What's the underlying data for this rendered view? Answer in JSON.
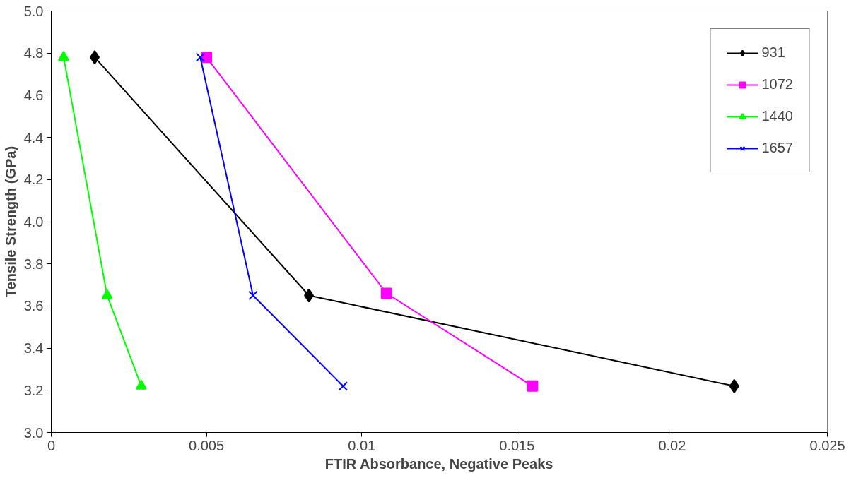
{
  "chart_data": {
    "type": "line",
    "xlabel": "FTIR Absorbance, Negative Peaks",
    "ylabel": "Tensile Strength (GPa)",
    "xlim": [
      0,
      0.025
    ],
    "xticks": [
      0,
      0.005,
      0.01,
      0.015,
      0.02,
      0.025
    ],
    "ylim": [
      3.0,
      5.0
    ],
    "yticks": [
      {
        "value": 3.0,
        "label": "3.0"
      },
      {
        "value": 3.2,
        "label": "3.2"
      },
      {
        "value": 3.4,
        "label": "3.4"
      },
      {
        "value": 3.6,
        "label": "3.6"
      },
      {
        "value": 3.8,
        "label": "3.8"
      },
      {
        "value": 4.0,
        "label": "4.0"
      },
      {
        "value": 4.2,
        "label": "4.2"
      },
      {
        "value": 4.4,
        "label": "4.4"
      },
      {
        "value": 4.6,
        "label": "4.6"
      },
      {
        "value": 4.8,
        "label": "4.8"
      },
      {
        "value": 5.0,
        "label": "5.0"
      }
    ],
    "grid": false,
    "legend": "top right",
    "line_style": "solid",
    "series": [
      {
        "name": "931",
        "color": "#000000",
        "marker": "diamond",
        "x": [
          0.0014,
          0.0083,
          0.022
        ],
        "values": [
          4.78,
          3.65,
          3.22
        ]
      },
      {
        "name": "1072",
        "color": "#ff00ff",
        "marker": "square",
        "x": [
          0.005,
          0.0108,
          0.0155
        ],
        "values": [
          4.78,
          3.66,
          3.22
        ]
      },
      {
        "name": "1440",
        "color": "#00ff00",
        "marker": "triangle",
        "x": [
          0.0004,
          0.0018,
          0.0029
        ],
        "values": [
          4.78,
          3.65,
          3.22
        ]
      },
      {
        "name": "1657",
        "color": "#0000ff",
        "marker": "cross",
        "x": [
          0.0048,
          0.0065,
          0.0094
        ],
        "values": [
          4.78,
          3.65,
          3.22
        ]
      }
    ]
  }
}
